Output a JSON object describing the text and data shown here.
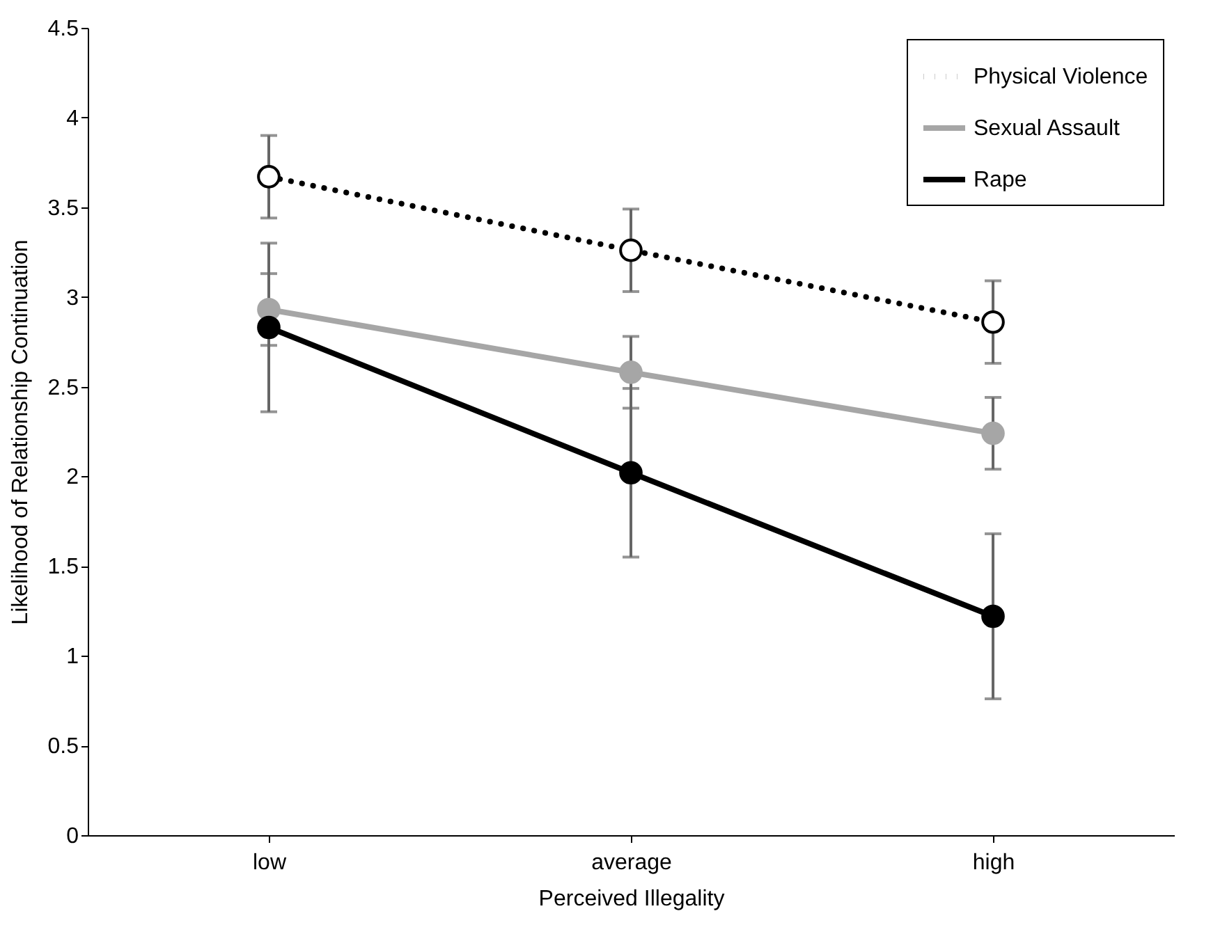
{
  "chart_data": {
    "type": "line",
    "xlabel": "Perceived Illegality",
    "ylabel": "Likelihood of Relationship Continuation",
    "categories": [
      "low",
      "average",
      "high"
    ],
    "series": [
      {
        "name": "Physical Violence",
        "color": "#000000",
        "line_style": "dotted",
        "values": [
          3.67,
          3.26,
          2.86
        ],
        "errors": [
          0.23,
          0.23,
          0.23
        ]
      },
      {
        "name": "Sexual Assault",
        "color": "#a6a6a6",
        "line_style": "solid",
        "values": [
          2.93,
          2.58,
          2.24
        ],
        "errors": [
          0.2,
          0.2,
          0.2
        ]
      },
      {
        "name": "Rape",
        "color": "#000000",
        "line_style": "solid",
        "values": [
          2.83,
          2.02,
          1.22
        ],
        "errors": [
          0.47,
          0.47,
          0.46
        ]
      }
    ],
    "ylim": [
      0,
      4.5
    ],
    "yticks": [
      0,
      0.5,
      1,
      1.5,
      2,
      2.5,
      3,
      3.5,
      4,
      4.5
    ],
    "grid": false,
    "legend": "top right",
    "marker": "circle"
  }
}
